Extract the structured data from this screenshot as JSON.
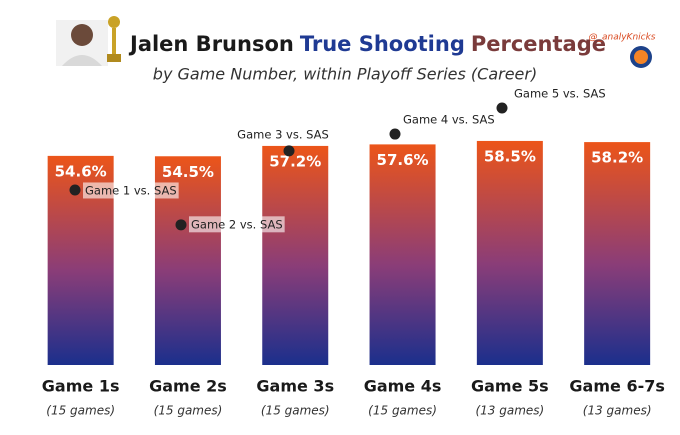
{
  "chart_data": {
    "type": "bar",
    "title_parts": [
      {
        "text": "Jalen Brunson",
        "color": "#1a1a1a"
      },
      {
        "text": "True Shooting",
        "color": "#1f3a93"
      },
      {
        "text": "Percentage",
        "color": "#7a3b3b"
      }
    ],
    "subtitle": "by Game Number, within Playoff Series (Career)",
    "handle": "@_analyKnicks",
    "categories": [
      "Game 1s",
      "Game 2s",
      "Game 3s",
      "Game 4s",
      "Game 5s",
      "Game 6-7s"
    ],
    "subcategories": [
      "(15 games)",
      "(15 games)",
      "(15 games)",
      "(15 games)",
      "(13 games)",
      "(13 games)"
    ],
    "values": [
      54.6,
      54.5,
      57.2,
      57.6,
      58.5,
      58.2
    ],
    "value_labels": [
      "54.6%",
      "54.5%",
      "57.2%",
      "57.6%",
      "58.5%",
      "58.2%"
    ],
    "gradient": [
      "#ec5519",
      "#8a3d78",
      "#1b2f8c"
    ],
    "points": {
      "values": [
        45.7,
        36.6,
        55.9,
        60.3,
        67.1,
        null
      ],
      "labels": [
        "Game 1 vs. SAS",
        "Game 2 vs. SAS",
        "Game 3 vs. SAS",
        "Game 4 vs. SAS",
        "Game 5 vs. SAS",
        null
      ],
      "color": "#222222"
    }
  }
}
